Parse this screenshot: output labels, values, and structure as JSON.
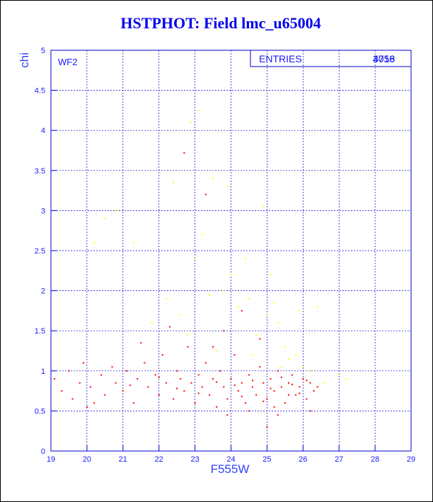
{
  "chart_data": {
    "type": "scatter",
    "title": "HSTPHOT: Field lmc_u65004",
    "x_label": "F555W",
    "y_label": "chi",
    "panel_label": "WF2",
    "entries_label": "ENTRIES",
    "entries": [
      4056,
      3718
    ],
    "xlim": [
      19,
      29
    ],
    "ylim": [
      0,
      5
    ],
    "xticks": [
      19,
      20,
      21,
      22,
      23,
      24,
      25,
      26,
      27,
      28,
      29
    ],
    "yticks": [
      0,
      0.5,
      1,
      1.5,
      2,
      2.5,
      3,
      3.5,
      4,
      4.5,
      5
    ],
    "grid": true,
    "series": [
      {
        "color": "#ff0000",
        "x": [
          19.1,
          19.3,
          19.5,
          19.6,
          19.8,
          19.9,
          20.1,
          20.2,
          20.4,
          20.5,
          20.7,
          20.8,
          21.0,
          21.1,
          21.3,
          21.4,
          21.6,
          21.7,
          21.9,
          22.0,
          22.1,
          22.2,
          22.4,
          22.5,
          22.6,
          22.7,
          22.8,
          22.9,
          23.0,
          23.1,
          23.2,
          23.3,
          23.4,
          23.5,
          23.6,
          23.7,
          23.8,
          23.9,
          24.0,
          24.1,
          24.2,
          24.3,
          24.4,
          24.5,
          24.6,
          24.7,
          24.8,
          24.9,
          25.0,
          25.1,
          25.2,
          25.3,
          25.4,
          25.5,
          25.6,
          25.7,
          25.8,
          25.9,
          26.0,
          26.1,
          26.2,
          26.3,
          26.4,
          22.7,
          23.3,
          23.8,
          24.3,
          25.0,
          20.0,
          21.5,
          22.3,
          23.5,
          24.8,
          25.3,
          26.2,
          24.5,
          23.9,
          24.1,
          24.6,
          25.1,
          25.4,
          25.7,
          25.9,
          26.1,
          24.3,
          24.9,
          25.2,
          25.6,
          22.5,
          23.1,
          23.6,
          22.0,
          21.2
        ],
        "values": [
          0.9,
          0.75,
          1.0,
          0.65,
          0.85,
          1.1,
          0.8,
          0.6,
          0.95,
          0.7,
          1.05,
          0.85,
          0.75,
          1.0,
          0.6,
          0.9,
          1.1,
          0.8,
          0.95,
          0.7,
          1.2,
          0.85,
          0.65,
          1.0,
          0.9,
          0.75,
          1.3,
          0.85,
          0.6,
          0.95,
          0.8,
          1.1,
          0.7,
          0.9,
          0.55,
          1.0,
          0.8,
          0.65,
          0.9,
          1.2,
          0.75,
          0.85,
          0.6,
          0.95,
          0.8,
          0.7,
          1.05,
          0.85,
          0.65,
          0.9,
          0.75,
          1.0,
          0.8,
          0.6,
          0.85,
          0.95,
          0.7,
          0.8,
          0.9,
          0.65,
          0.85,
          0.75,
          0.8,
          3.72,
          3.2,
          1.5,
          1.75,
          0.3,
          0.55,
          1.35,
          1.55,
          1.3,
          1.4,
          0.45,
          0.5,
          0.5,
          0.45,
          0.82,
          0.88,
          0.78,
          0.92,
          0.83,
          0.72,
          0.88,
          0.68,
          0.62,
          0.55,
          0.7,
          0.78,
          0.72,
          0.86,
          0.92,
          0.82
        ]
      },
      {
        "color": "#ffff00",
        "x": [
          20.2,
          20.5,
          20.8,
          21.3,
          21.8,
          22.2,
          22.4,
          22.6,
          22.9,
          23.1,
          23.0,
          23.2,
          23.4,
          23.5,
          23.8,
          23.9,
          24.0,
          24.2,
          24.4,
          24.5,
          24.7,
          24.9,
          25.0,
          25.1,
          25.2,
          25.3,
          25.5,
          25.6,
          25.8,
          25.9,
          26.0,
          26.2,
          26.4,
          27.0,
          27.2,
          22.8,
          24.6,
          25.4,
          26.6,
          23.6
        ],
        "values": [
          2.6,
          2.9,
          3.0,
          2.6,
          1.6,
          1.9,
          3.35,
          1.7,
          4.1,
          4.25,
          2.4,
          2.7,
          1.95,
          3.4,
          2.0,
          3.3,
          2.2,
          1.8,
          2.4,
          1.9,
          1.45,
          3.05,
          1.7,
          2.2,
          1.85,
          1.6,
          1.3,
          1.15,
          1.2,
          1.75,
          1.05,
          1.0,
          1.8,
          0.95,
          0.9,
          1.45,
          1.2,
          1.05,
          0.85,
          1.25
        ]
      }
    ]
  }
}
